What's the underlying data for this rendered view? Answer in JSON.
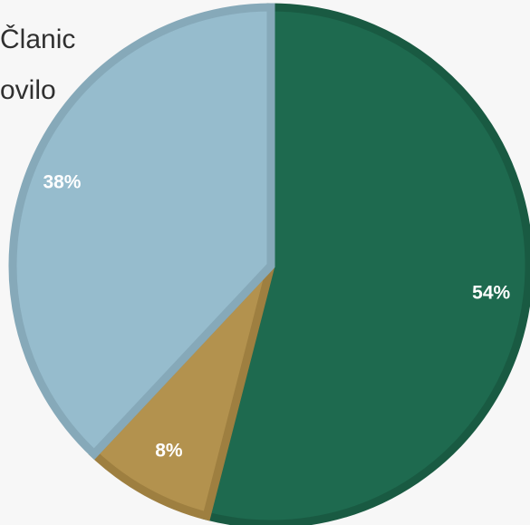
{
  "legend": {
    "lines": [
      "Članic",
      "ovilo"
    ]
  },
  "chart_data": {
    "type": "pie",
    "slices": [
      {
        "label": "54%",
        "value": 54,
        "color": "#1e6a4f",
        "stroke": "#195a42"
      },
      {
        "label": "8%",
        "value": 8,
        "color": "#b3924e",
        "stroke": "#9e7f40"
      },
      {
        "label": "38%",
        "value": 38,
        "color": "#96bccd",
        "stroke": "#86a9b9"
      }
    ]
  }
}
